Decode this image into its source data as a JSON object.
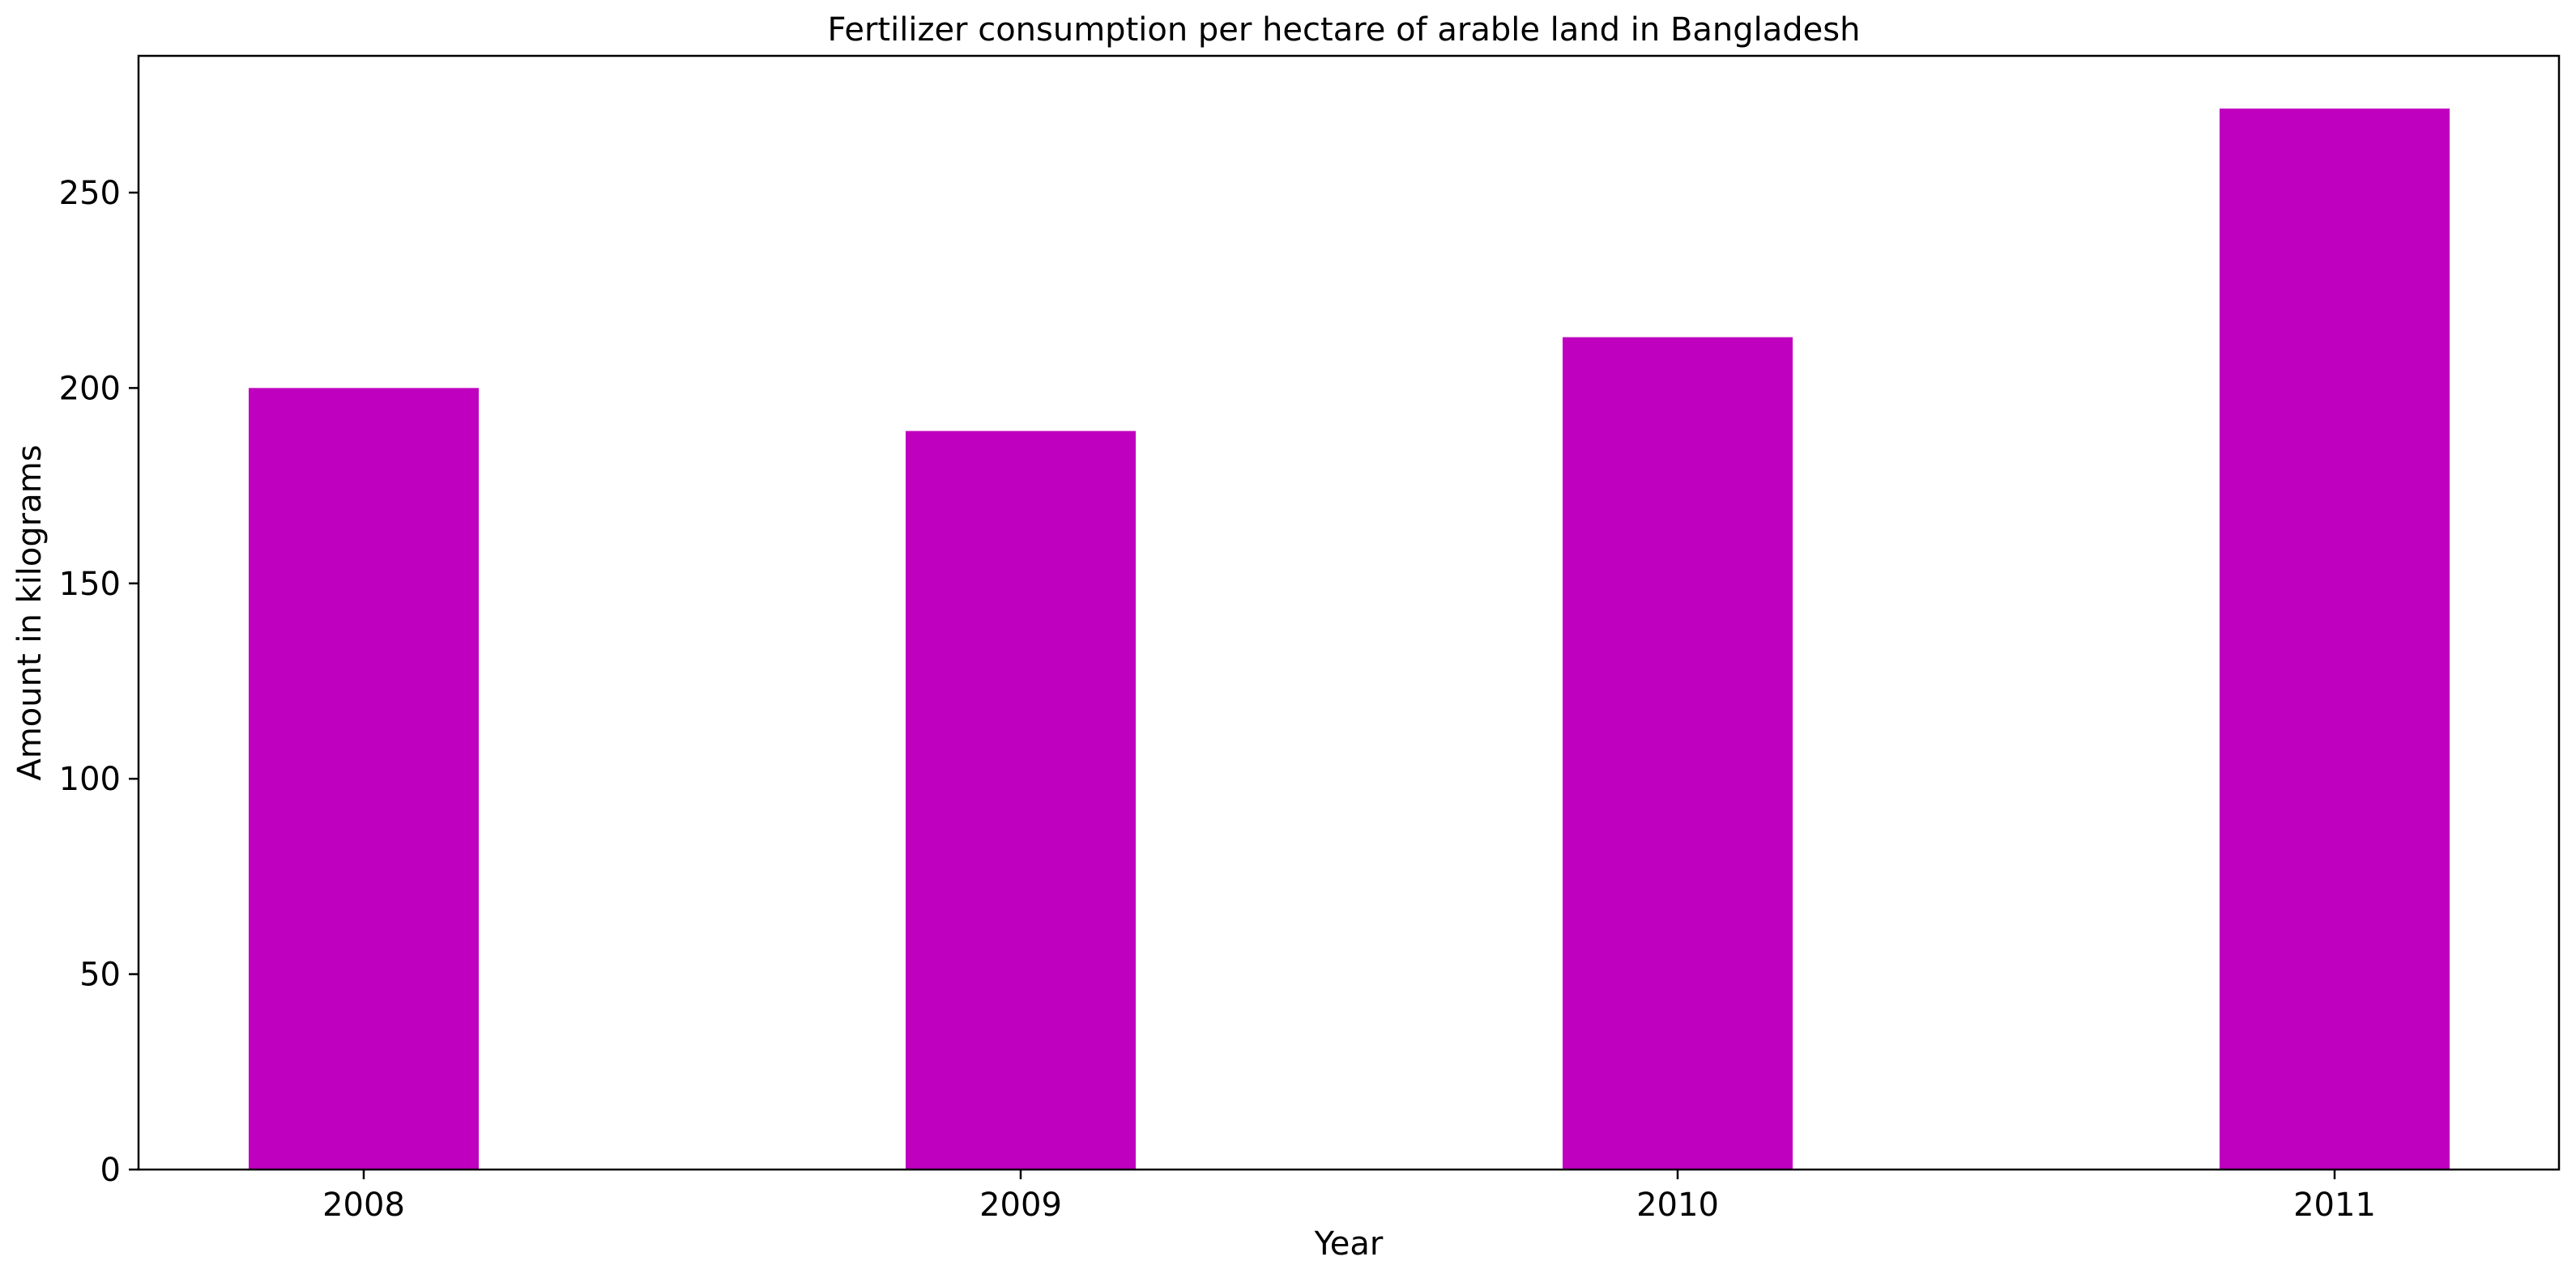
{
  "chart_data": {
    "type": "bar",
    "title": "Fertilizer consumption per hectare of arable land in Bangladesh",
    "xlabel": "Year",
    "ylabel": "Amount in kilograms",
    "categories": [
      "2008",
      "2009",
      "2010",
      "2011"
    ],
    "values": [
      200,
      189,
      213,
      271.5
    ],
    "ylim": [
      0,
      285
    ],
    "yticks": [
      0,
      50,
      100,
      150,
      200,
      250
    ],
    "grid": false,
    "legend": "none",
    "bar_color": "#bf00bf"
  }
}
